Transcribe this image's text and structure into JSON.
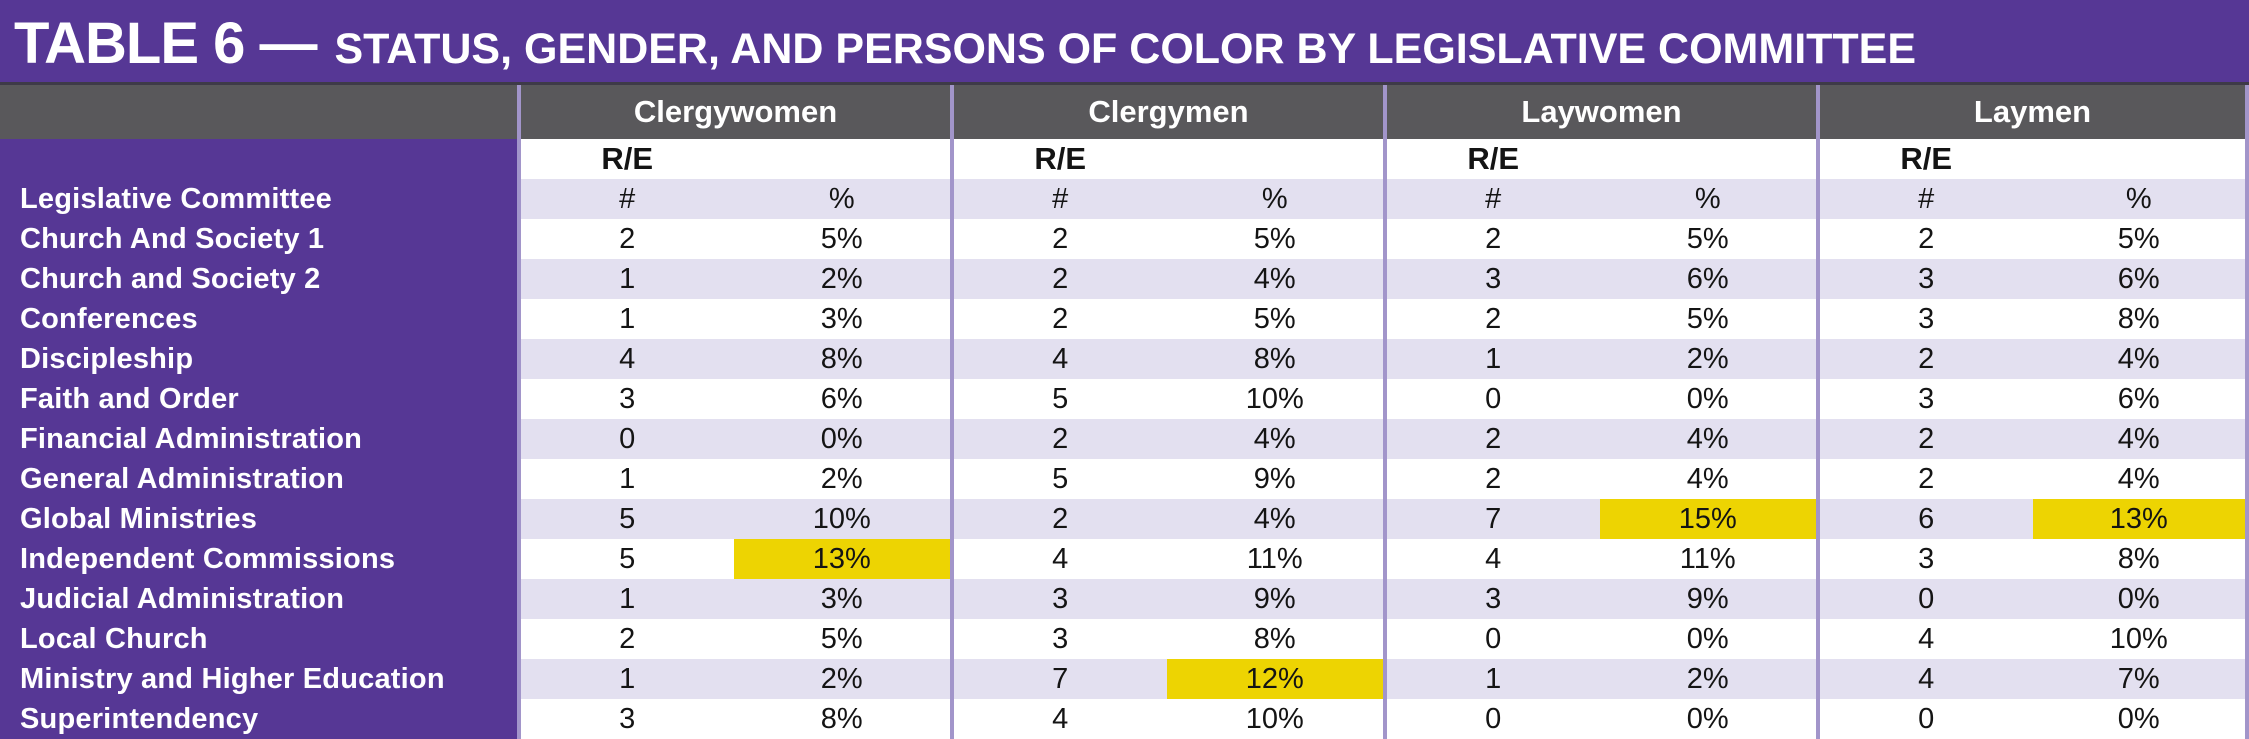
{
  "title": {
    "prefix": "TABLE 6 —",
    "rest": "STATUS, GENDER, AND PERSONS OF COLOR BY LEGISLATIVE COMMITTEE"
  },
  "columns": {
    "groups": [
      {
        "label": "Clergywomen"
      },
      {
        "label": "Clergymen"
      },
      {
        "label": "Laywomen"
      },
      {
        "label": "Laymen"
      }
    ],
    "re_label": "R/E",
    "measures": [
      "#",
      "%"
    ]
  },
  "row_header_label": "Legislative Committee",
  "rows": [
    {
      "label": "Church And Society 1",
      "cells": [
        {
          "n": "2",
          "p": "5%",
          "hl": false
        },
        {
          "n": "2",
          "p": "5%",
          "hl": false
        },
        {
          "n": "2",
          "p": "5%",
          "hl": false
        },
        {
          "n": "2",
          "p": "5%",
          "hl": false
        }
      ]
    },
    {
      "label": "Church and Society 2",
      "cells": [
        {
          "n": "1",
          "p": "2%",
          "hl": false
        },
        {
          "n": "2",
          "p": "4%",
          "hl": false
        },
        {
          "n": "3",
          "p": "6%",
          "hl": false
        },
        {
          "n": "3",
          "p": "6%",
          "hl": false
        }
      ]
    },
    {
      "label": "Conferences",
      "cells": [
        {
          "n": "1",
          "p": "3%",
          "hl": false
        },
        {
          "n": "2",
          "p": "5%",
          "hl": false
        },
        {
          "n": "2",
          "p": "5%",
          "hl": false
        },
        {
          "n": "3",
          "p": "8%",
          "hl": false
        }
      ]
    },
    {
      "label": "Discipleship",
      "cells": [
        {
          "n": "4",
          "p": "8%",
          "hl": false
        },
        {
          "n": "4",
          "p": "8%",
          "hl": false
        },
        {
          "n": "1",
          "p": "2%",
          "hl": false
        },
        {
          "n": "2",
          "p": "4%",
          "hl": false
        }
      ]
    },
    {
      "label": "Faith and Order",
      "cells": [
        {
          "n": "3",
          "p": "6%",
          "hl": false
        },
        {
          "n": "5",
          "p": "10%",
          "hl": false
        },
        {
          "n": "0",
          "p": "0%",
          "hl": false
        },
        {
          "n": "3",
          "p": "6%",
          "hl": false
        }
      ]
    },
    {
      "label": "Financial Administration",
      "cells": [
        {
          "n": "0",
          "p": "0%",
          "hl": false
        },
        {
          "n": "2",
          "p": "4%",
          "hl": false
        },
        {
          "n": "2",
          "p": "4%",
          "hl": false
        },
        {
          "n": "2",
          "p": "4%",
          "hl": false
        }
      ]
    },
    {
      "label": "General Administration",
      "cells": [
        {
          "n": "1",
          "p": "2%",
          "hl": false
        },
        {
          "n": "5",
          "p": "9%",
          "hl": false
        },
        {
          "n": "2",
          "p": "4%",
          "hl": false
        },
        {
          "n": "2",
          "p": "4%",
          "hl": false
        }
      ]
    },
    {
      "label": "Global Ministries",
      "cells": [
        {
          "n": "5",
          "p": "10%",
          "hl": false
        },
        {
          "n": "2",
          "p": "4%",
          "hl": false
        },
        {
          "n": "7",
          "p": "15%",
          "hl": true
        },
        {
          "n": "6",
          "p": "13%",
          "hl": true
        }
      ]
    },
    {
      "label": "Independent Commissions",
      "cells": [
        {
          "n": "5",
          "p": "13%",
          "hl": true
        },
        {
          "n": "4",
          "p": "11%",
          "hl": false
        },
        {
          "n": "4",
          "p": "11%",
          "hl": false
        },
        {
          "n": "3",
          "p": "8%",
          "hl": false
        }
      ]
    },
    {
      "label": "Judicial Administration",
      "cells": [
        {
          "n": "1",
          "p": "3%",
          "hl": false
        },
        {
          "n": "3",
          "p": "9%",
          "hl": false
        },
        {
          "n": "3",
          "p": "9%",
          "hl": false
        },
        {
          "n": "0",
          "p": "0%",
          "hl": false
        }
      ]
    },
    {
      "label": "Local Church",
      "cells": [
        {
          "n": "2",
          "p": "5%",
          "hl": false
        },
        {
          "n": "3",
          "p": "8%",
          "hl": false
        },
        {
          "n": "0",
          "p": "0%",
          "hl": false
        },
        {
          "n": "4",
          "p": "10%",
          "hl": false
        }
      ]
    },
    {
      "label": "Ministry and Higher Education",
      "cells": [
        {
          "n": "1",
          "p": "2%",
          "hl": false
        },
        {
          "n": "7",
          "p": "12%",
          "hl": true
        },
        {
          "n": "1",
          "p": "2%",
          "hl": false
        },
        {
          "n": "4",
          "p": "7%",
          "hl": false
        }
      ]
    },
    {
      "label": "Superintendency",
      "cells": [
        {
          "n": "3",
          "p": "8%",
          "hl": false
        },
        {
          "n": "4",
          "p": "10%",
          "hl": false
        },
        {
          "n": "0",
          "p": "0%",
          "hl": false
        },
        {
          "n": "0",
          "p": "0%",
          "hl": false
        }
      ]
    }
  ],
  "colors": {
    "purple": "#563795",
    "header_gray": "#59585b",
    "stripe_lavender": "#e3e0f0",
    "highlight_yellow": "#edd402",
    "grid_line": "#a295ca",
    "white": "#ffffff"
  }
}
